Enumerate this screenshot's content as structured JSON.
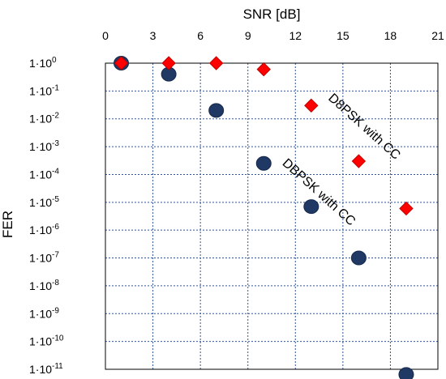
{
  "chart_data": {
    "type": "scatter",
    "title": "",
    "xlabel": "SNR [dB]",
    "ylabel": "FER",
    "x_axis_position": "top",
    "y_scale": "log",
    "xlim": [
      0,
      21
    ],
    "ylim": [
      1e-11,
      1
    ],
    "grid": true,
    "x_ticks": [
      "0",
      "3",
      "6",
      "9",
      "12",
      "15",
      "18",
      "21"
    ],
    "y_ticks": [
      {
        "mantissa": "1·10",
        "exp": "0"
      },
      {
        "mantissa": "1·10",
        "exp": "-1"
      },
      {
        "mantissa": "1·10",
        "exp": "-2"
      },
      {
        "mantissa": "1·10",
        "exp": "-3"
      },
      {
        "mantissa": "1·10",
        "exp": "-4"
      },
      {
        "mantissa": "1·10",
        "exp": "-5"
      },
      {
        "mantissa": "1·10",
        "exp": "-6"
      },
      {
        "mantissa": "1·10",
        "exp": "-7"
      },
      {
        "mantissa": "1·10",
        "exp": "-8"
      },
      {
        "mantissa": "1·10",
        "exp": "-9"
      },
      {
        "mantissa": "1·10",
        "exp": "-10"
      },
      {
        "mantissa": "1·10",
        "exp": "-11"
      }
    ],
    "series": [
      {
        "label": "D8PSK with CC",
        "marker": "diamond",
        "color": "#ff0000",
        "stroke": "#c00000",
        "x": [
          1,
          4,
          7,
          10,
          13,
          16,
          19
        ],
        "y": [
          1.0,
          1.0,
          1.0,
          0.6,
          0.03,
          0.0003,
          6e-06
        ]
      },
      {
        "label": "DBPSK with CC",
        "marker": "circle",
        "color": "#1f3864",
        "stroke": "#17294d",
        "x": [
          1,
          4,
          7,
          10,
          13,
          16,
          19
        ],
        "y": [
          1.0,
          0.4,
          0.02,
          0.00025,
          7e-06,
          1e-07,
          6.5e-12
        ]
      }
    ],
    "annotations": [
      {
        "text": "D8PSK with CC",
        "series": "D8PSK with CC"
      },
      {
        "text": "DBPSK with CC",
        "series": "DBPSK with CC"
      }
    ]
  }
}
